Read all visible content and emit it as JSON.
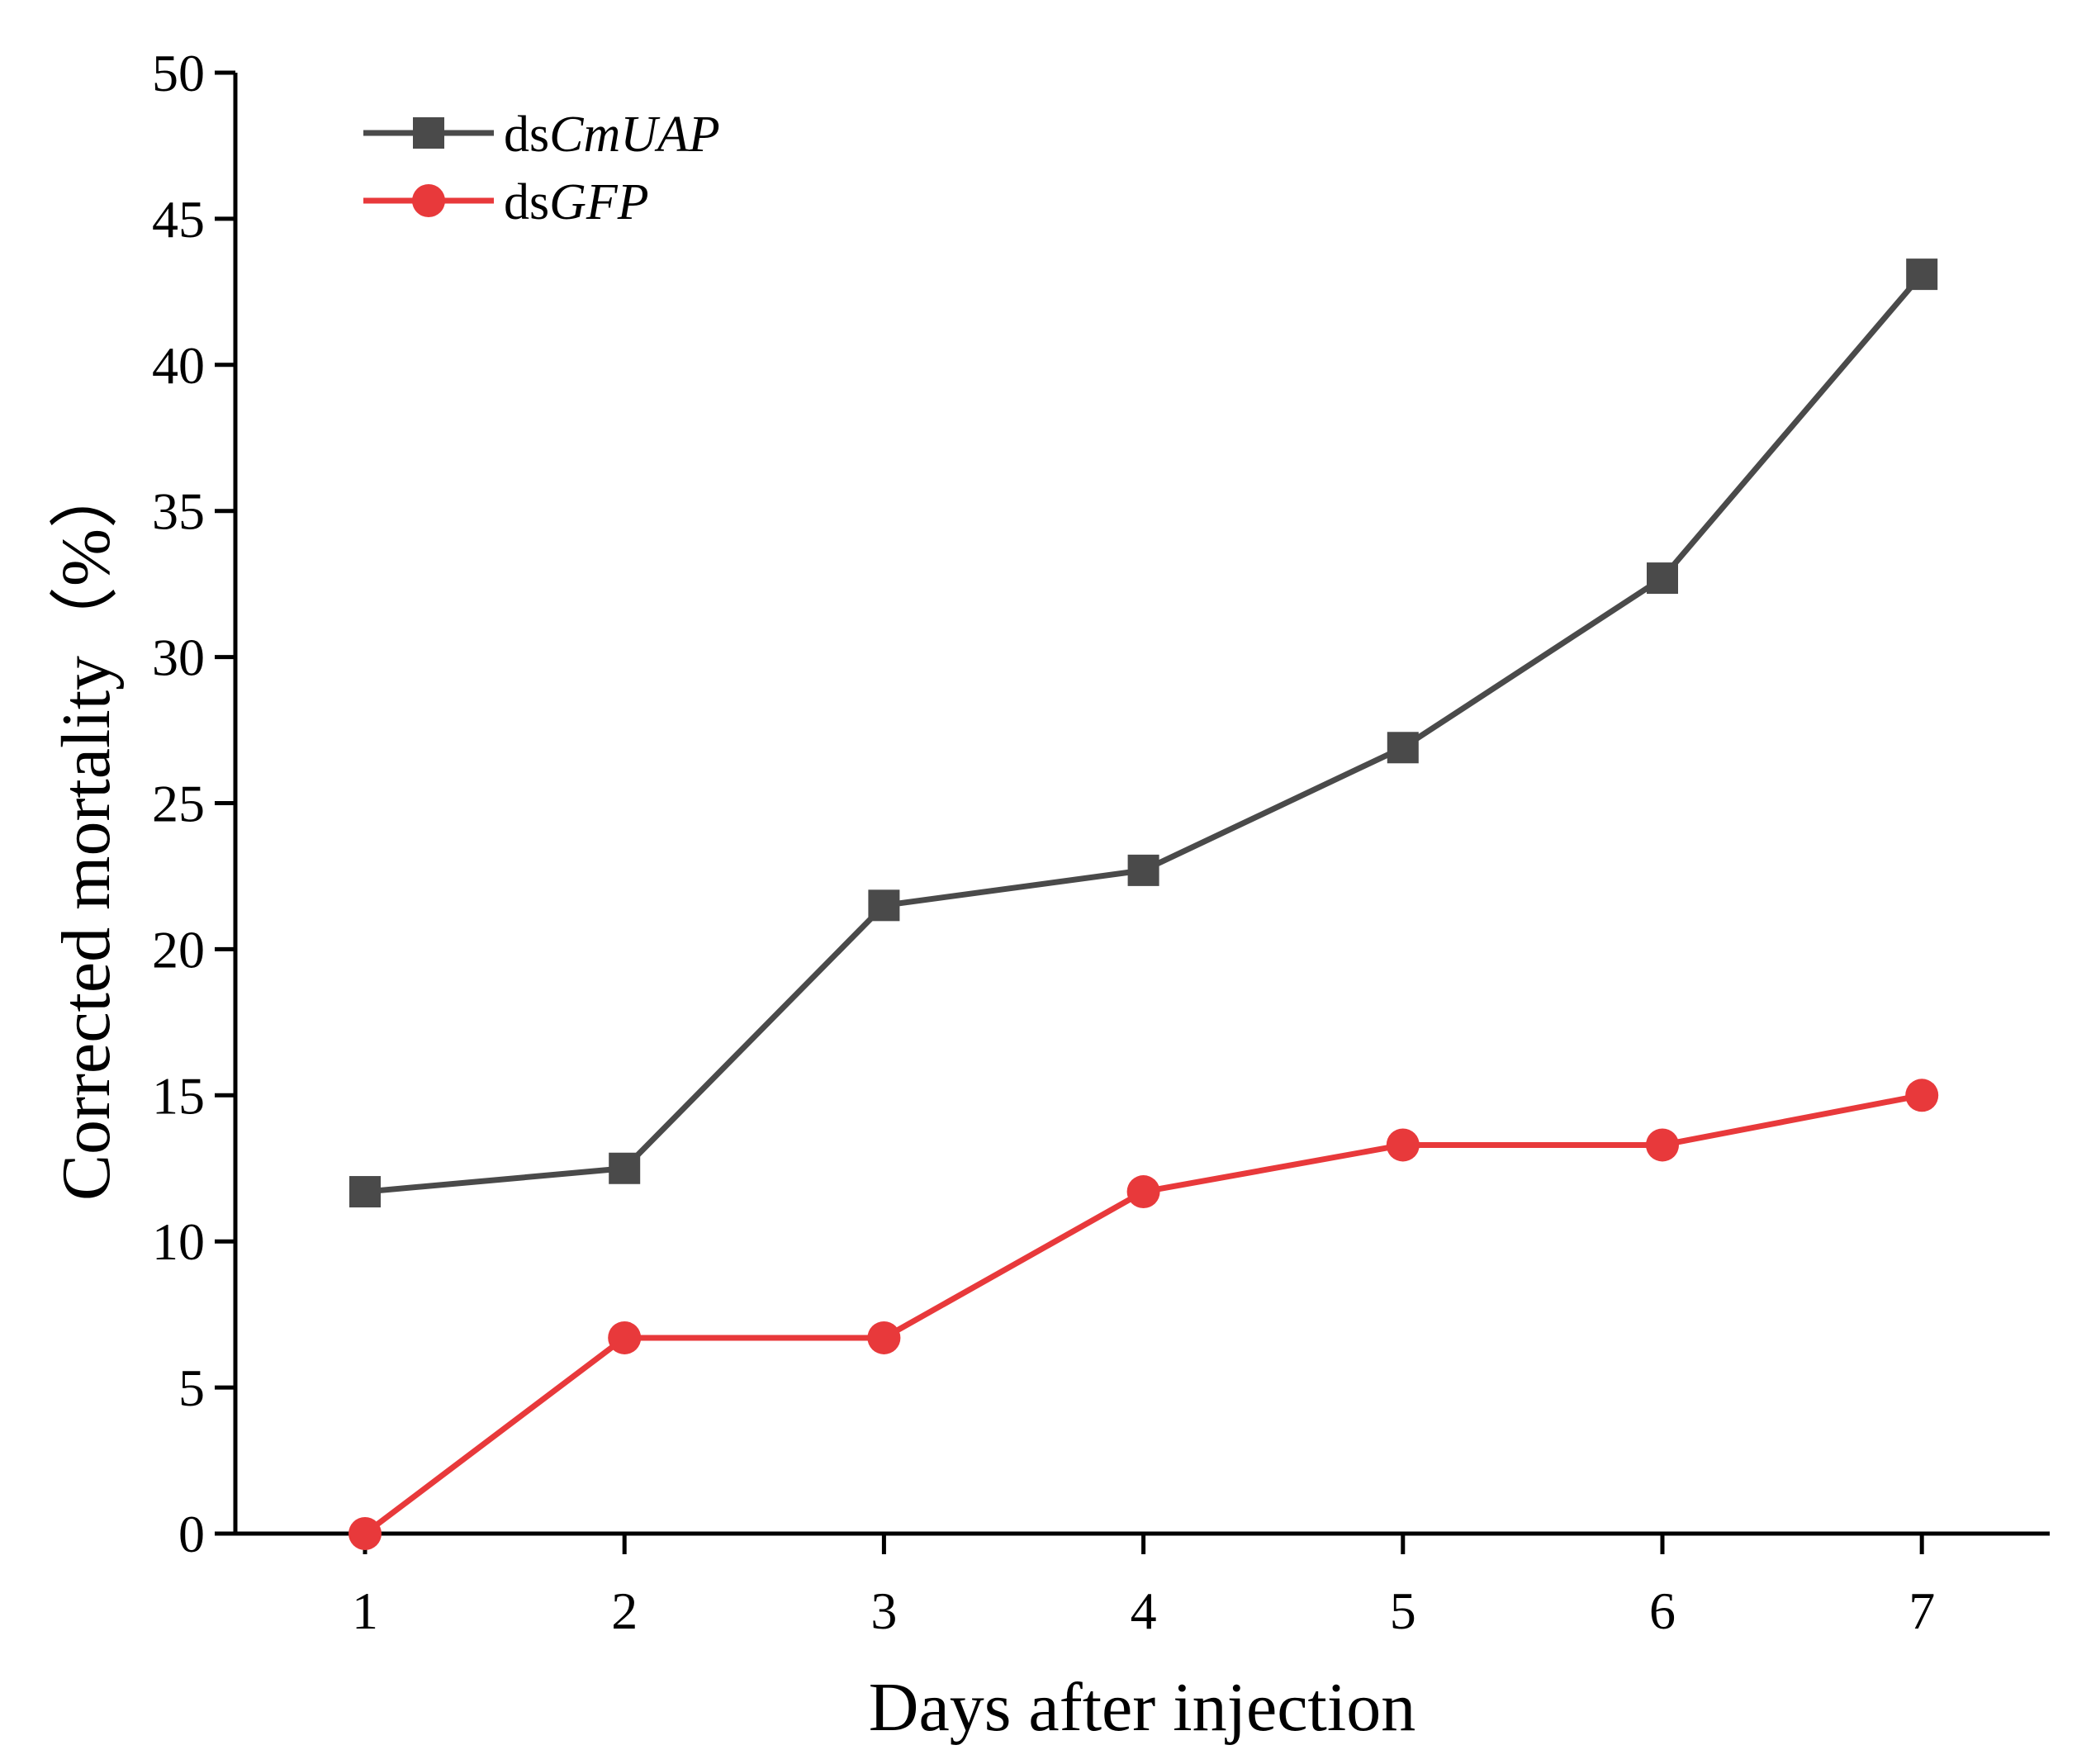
{
  "chart_data": {
    "type": "line",
    "title": "",
    "xlabel": "Days after injection",
    "ylabel": "Corrected mortality（%）",
    "x": [
      1,
      2,
      3,
      4,
      5,
      6,
      7
    ],
    "xticks": [
      "1",
      "2",
      "3",
      "4",
      "5",
      "6",
      "7"
    ],
    "yticks": [
      "0",
      "5",
      "10",
      "15",
      "20",
      "25",
      "30",
      "35",
      "40",
      "45",
      "50"
    ],
    "ylim": [
      0,
      50
    ],
    "grid": false,
    "legend_position": "top-left",
    "series": [
      {
        "name": "dsCmUAP",
        "name_prefix": "ds",
        "name_italic": "CmUAP",
        "marker": "square",
        "color": "#4a4a4a",
        "values": [
          11.7,
          12.5,
          21.5,
          22.7,
          26.9,
          32.7,
          43.1
        ]
      },
      {
        "name": "dsGFP",
        "name_prefix": "ds",
        "name_italic": "GFP",
        "marker": "circle",
        "color": "#e8393b",
        "values": [
          0,
          6.7,
          6.7,
          11.7,
          13.3,
          13.3,
          15.0
        ]
      }
    ]
  }
}
